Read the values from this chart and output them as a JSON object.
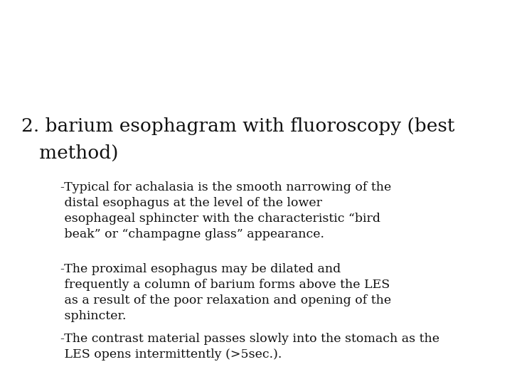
{
  "background_color": "#ffffff",
  "heading_line1": "2. barium esophagram with fluoroscopy (best",
  "heading_line2": "   method)",
  "heading_fontsize": 19,
  "bullet_lines": [
    "-Typical for achalasia is the smooth narrowing of the",
    " distal esophagus at the level of the lower",
    " esophageal sphincter with the characteristic “bird",
    " beak” or “champagne glass” appearance.",
    "-The proximal esophagus may be dilated and",
    " frequently a column of barium forms above the LES",
    " as a result of the poor relaxation and opening of the",
    " sphincter.",
    "-The contrast material passes slowly into the stomach as the",
    " LES opens intermittently (>5sec.)."
  ],
  "bullet_fontsize": 12.5,
  "text_color": "#111111",
  "font_family": "DejaVu Serif"
}
